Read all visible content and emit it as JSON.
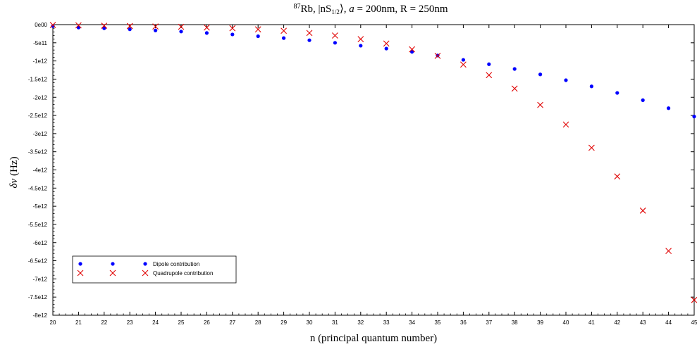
{
  "chart_data": {
    "type": "scatter",
    "title": "87Rb, |nS1/2⟩, a = 200nm, R = 250nm",
    "title_parts": {
      "superscript": "87",
      "element": "Rb, |nS",
      "subscript": "1/2",
      "rest_a": "⟩, ",
      "var_a": "a",
      "rest_b": " = 200nm, R = 250nm"
    },
    "xlabel": "n (principal quantum number)",
    "ylabel_parts": {
      "delta": "δν",
      "unit": " (Hz)"
    },
    "xlim": [
      20,
      45
    ],
    "ylim": [
      -8000000000000.0,
      0
    ],
    "x_ticks": [
      20,
      21,
      22,
      23,
      24,
      25,
      26,
      27,
      28,
      29,
      30,
      31,
      32,
      33,
      34,
      35,
      36,
      37,
      38,
      39,
      40,
      41,
      42,
      43,
      44,
      45
    ],
    "x_tick_labels": [
      "20",
      "21",
      "22",
      "23",
      "24",
      "25",
      "26",
      "27",
      "28",
      "29",
      "30",
      "31",
      "32",
      "33",
      "34",
      "35",
      "36",
      "37",
      "38",
      "39",
      "40",
      "41",
      "42",
      "43",
      "44",
      "45"
    ],
    "y_ticks": [
      0,
      -500000000000.0,
      -1000000000000.0,
      -1500000000000.0,
      -2000000000000.0,
      -2500000000000.0,
      -3000000000000.0,
      -3500000000000.0,
      -4000000000000.0,
      -4500000000000.0,
      -5000000000000.0,
      -5500000000000.0,
      -6000000000000.0,
      -6500000000000.0,
      -7000000000000.0,
      -7500000000000.0,
      -8000000000000.0
    ],
    "y_tick_labels": [
      "0e00",
      "-5e11",
      "-1e12",
      "-1.5e12",
      "-2e12",
      "-2.5e12",
      "-3e12",
      "-3.5e12",
      "-4e12",
      "-4.5e12",
      "-5e12",
      "-5.5e12",
      "-6e12",
      "-6.5e12",
      "-7e12",
      "-7.5e12",
      "-8e12"
    ],
    "legend_position": "bottom-left",
    "series": [
      {
        "name": "Dipole contribution",
        "marker": "dot",
        "color": "#0000ff",
        "x": [
          20,
          21,
          22,
          23,
          24,
          25,
          26,
          27,
          28,
          29,
          30,
          31,
          32,
          33,
          34,
          35,
          36,
          37,
          38,
          39,
          40,
          41,
          42,
          43,
          44,
          45
        ],
        "y": [
          -40000000000.0,
          -80000000000.0,
          -100000000000.0,
          -130000000000.0,
          -160000000000.0,
          -190000000000.0,
          -230000000000.0,
          -270000000000.0,
          -320000000000.0,
          -370000000000.0,
          -430000000000.0,
          -500000000000.0,
          -580000000000.0,
          -660000000000.0,
          -750000000000.0,
          -850000000000.0,
          -970000000000.0,
          -1090000000000.0,
          -1220000000000.0,
          -1370000000000.0,
          -1530000000000.0,
          -1700000000000.0,
          -1880000000000.0,
          -2080000000000.0,
          -2300000000000.0,
          -2530000000000.0
        ]
      },
      {
        "name": "Quadrupole contribution",
        "marker": "cross",
        "color": "#e00000",
        "x": [
          20,
          21,
          22,
          23,
          24,
          25,
          26,
          27,
          28,
          29,
          30,
          31,
          32,
          33,
          34,
          35,
          36,
          37,
          38,
          39,
          40,
          41,
          42,
          43,
          44,
          45
        ],
        "y": [
          -10000000000.0,
          -20000000000.0,
          -30000000000.0,
          -40000000000.0,
          -50000000000.0,
          -60000000000.0,
          -80000000000.0,
          -100000000000.0,
          -130000000000.0,
          -170000000000.0,
          -230000000000.0,
          -300000000000.0,
          -400000000000.0,
          -520000000000.0,
          -680000000000.0,
          -860000000000.0,
          -1100000000000.0,
          -1390000000000.0,
          -1760000000000.0,
          -2210000000000.0,
          -2750000000000.0,
          -3390000000000.0,
          -4180000000000.0,
          -5120000000000.0,
          -6230000000000.0,
          -7580000000000.0
        ]
      }
    ]
  }
}
